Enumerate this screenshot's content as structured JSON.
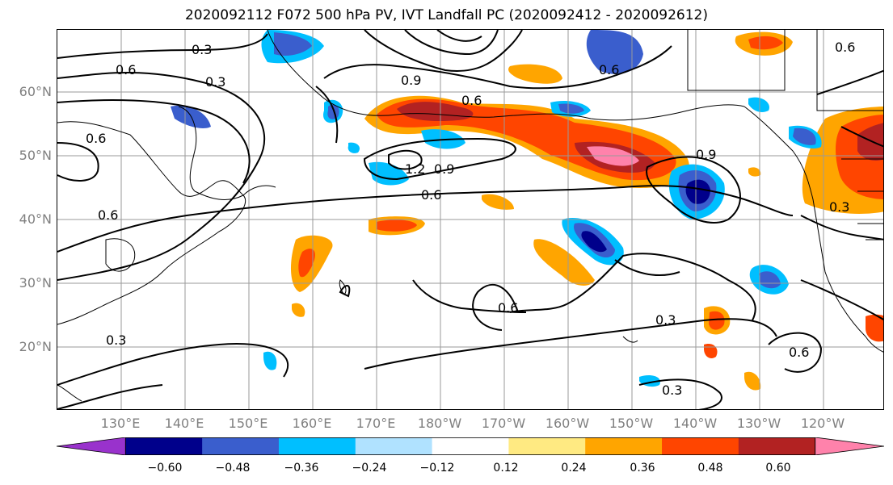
{
  "title": "2020092112 F072 500 hPa PV, IVT Landfall PC (2020092412 - 2020092612)",
  "lat_labels": [
    "60°N",
    "50°N",
    "40°N",
    "30°N",
    "20°N"
  ],
  "lon_labels": [
    "130°E",
    "140°E",
    "150°E",
    "160°E",
    "170°E",
    "180°W",
    "170°W",
    "160°W",
    "150°W",
    "140°W",
    "130°W",
    "120°W"
  ],
  "colorbar": {
    "colors": [
      "#9932cc",
      "#00008b",
      "#3a5ecd",
      "#00bfff",
      "#b0e2ff",
      "#ffffff",
      "#ffea82",
      "#ffa500",
      "#ff4500",
      "#b22222",
      "#ff82ab"
    ],
    "tick_labels": [
      "−0.60",
      "−0.48",
      "−0.36",
      "−0.24",
      "−0.12",
      "0.12",
      "0.24",
      "0.36",
      "0.48",
      "0.60"
    ]
  },
  "contour_labels": [
    "0.3",
    "0.6",
    "0.3",
    "0.9",
    "0.6",
    "0.6",
    "1.2",
    "0.9",
    "0.6",
    "0.9",
    "0.6",
    "0.6",
    "0.3",
    "0.6",
    "0.3",
    "0.3",
    "0.6",
    "0.3",
    "0.6"
  ]
}
